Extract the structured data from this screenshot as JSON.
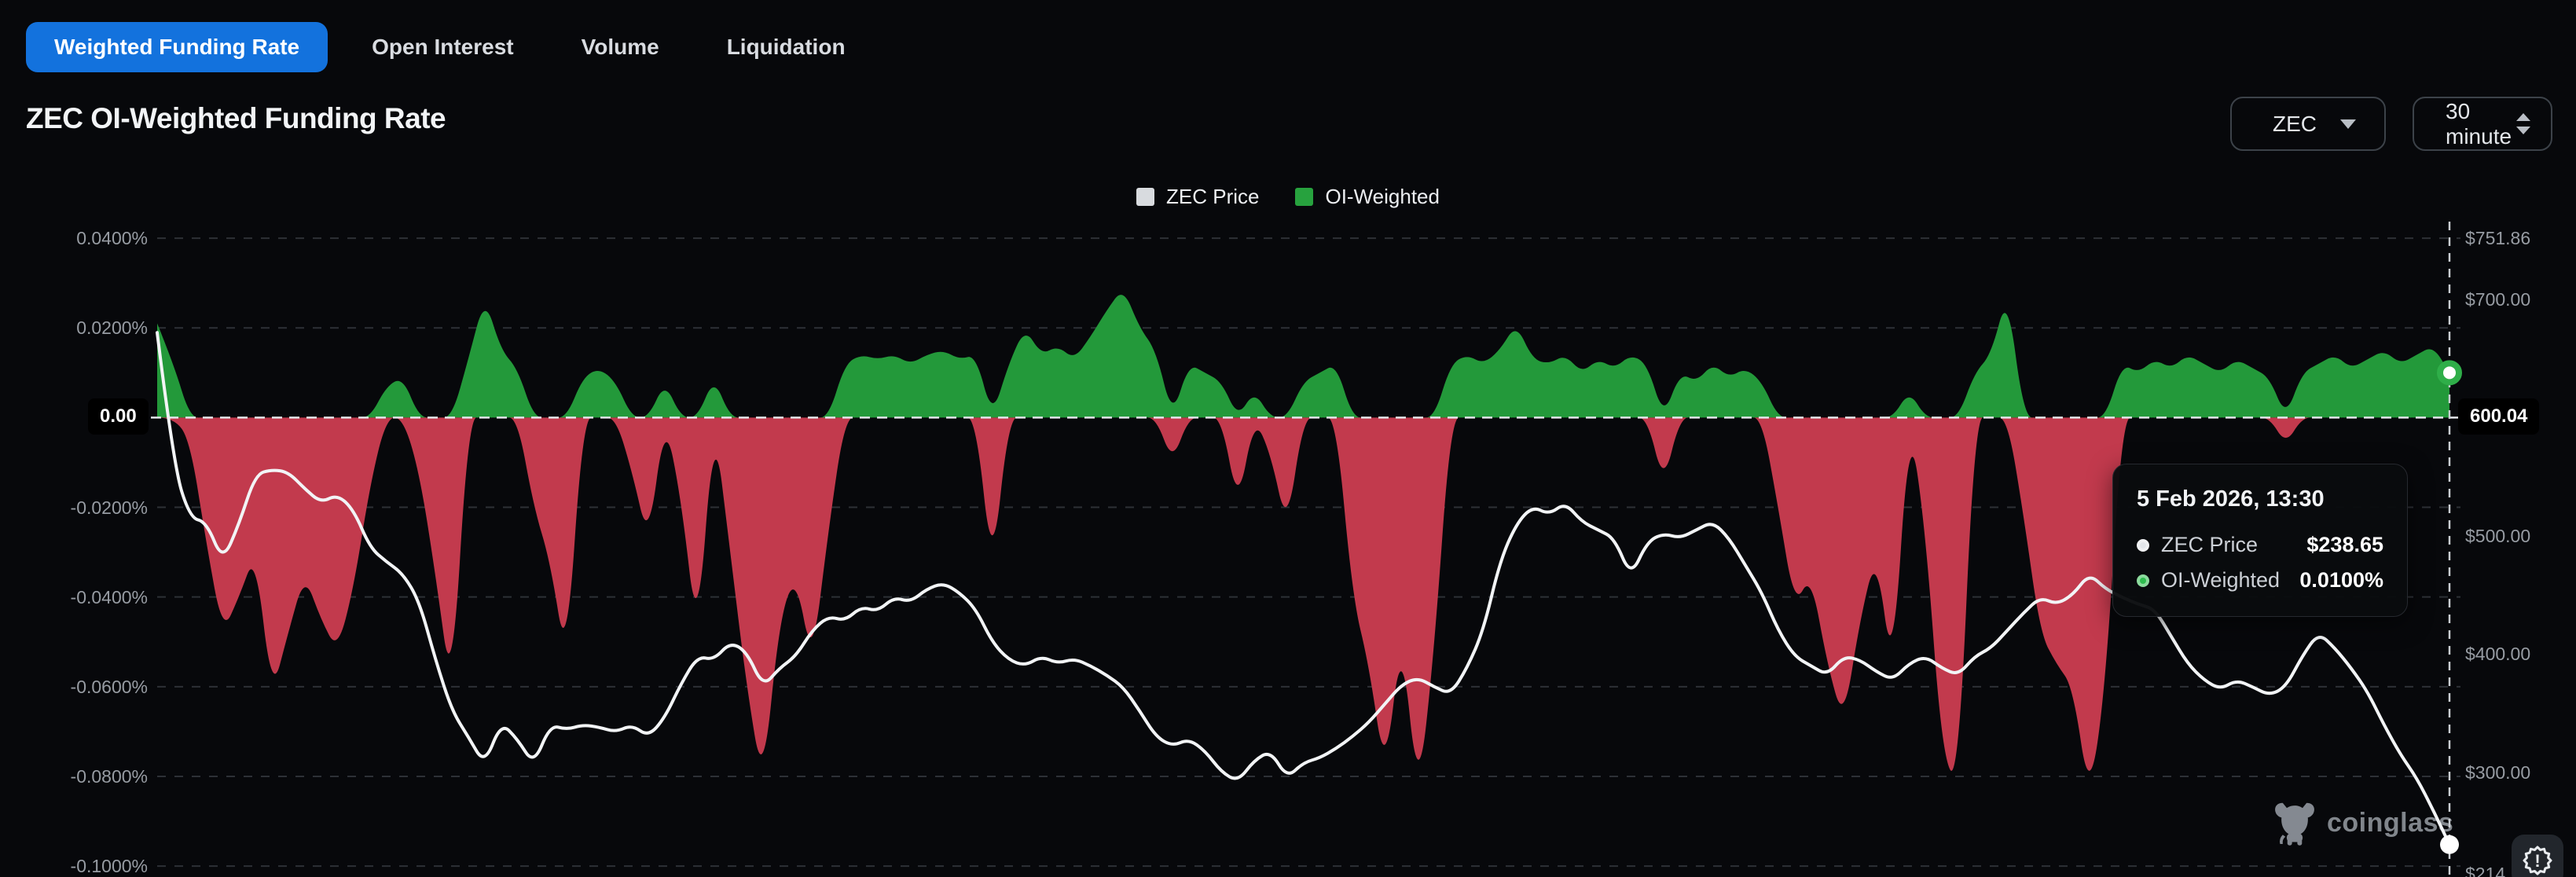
{
  "tabs": {
    "items": [
      {
        "label": "Weighted Funding Rate",
        "active": true
      },
      {
        "label": "Open Interest",
        "active": false
      },
      {
        "label": "Volume",
        "active": false
      },
      {
        "label": "Liquidation",
        "active": false
      }
    ]
  },
  "header": {
    "title": "ZEC OI-Weighted Funding Rate"
  },
  "controls": {
    "symbol": {
      "value": "ZEC"
    },
    "interval": {
      "value": "30 minute"
    }
  },
  "legend": {
    "items": [
      {
        "label": "ZEC Price",
        "color": "#d8dbdf"
      },
      {
        "label": "OI-Weighted",
        "color": "#27a23e"
      }
    ]
  },
  "tooltip": {
    "date": "5 Feb 2026, 13:30",
    "rows": [
      {
        "label": "ZEC Price",
        "value": "$238.65",
        "dot_color": "#e3e6ea"
      },
      {
        "label": "OI-Weighted",
        "value": "0.0100%",
        "dot_color": "#2ebd4e"
      }
    ]
  },
  "watermark": {
    "text": "coinglass",
    "logo": "bull-icon"
  },
  "corner_button": {
    "icon": "alert-badge-icon",
    "glyph": "!"
  },
  "colors": {
    "background": "#07080b",
    "accent_blue": "#1372dd",
    "positive_green": "#23993a",
    "negative_red": "#c23a4d",
    "price_line": "#f2f4f6",
    "grid": "#2d3036",
    "zero_line": "#e3e6ea",
    "crosshair": "#c9cdd2"
  },
  "chart_data": {
    "type": "area+line",
    "title": "ZEC OI-Weighted Funding Rate",
    "grid": "horizontal-dashed",
    "legend_position": "top-center",
    "x_axis": {
      "tick_labels_visible": false,
      "points": 141,
      "interval": "30 minute",
      "last_point_time": "5 Feb 2026, 13:30"
    },
    "left_axis": {
      "unit": "%",
      "ticks": [
        {
          "label": "0.0400%",
          "value": 0.04
        },
        {
          "label": "0.0200%",
          "value": 0.02
        },
        {
          "label": "-0.0200%",
          "value": -0.02
        },
        {
          "label": "-0.0400%",
          "value": -0.04
        },
        {
          "label": "-0.0600%",
          "value": -0.06
        },
        {
          "label": "-0.0800%",
          "value": -0.08
        },
        {
          "label": "-0.1000%",
          "value": -0.1
        }
      ],
      "zero": {
        "label": "0.00",
        "value": 0
      },
      "range": [
        -0.1,
        0.04
      ]
    },
    "right_axis": {
      "unit": "USD",
      "ticks": [
        {
          "label": "$751.86",
          "value": 751.86
        },
        {
          "label": "$700.00",
          "value": 700
        },
        {
          "label": "$500.00",
          "value": 500
        },
        {
          "label": "$400.00",
          "value": 400
        },
        {
          "label": "$300.00",
          "value": 300
        },
        {
          "label": "$214",
          "value": 214
        }
      ],
      "current": {
        "label": "600.04",
        "value": 600.04
      },
      "range": [
        210,
        751.86
      ]
    },
    "series": [
      {
        "name": "OI-Weighted",
        "type": "area",
        "unit": "%",
        "positive_color": "#23993a",
        "negative_color": "#c23a4d",
        "last_value": 0.01,
        "values": [
          0.021,
          0.012,
          -0.005,
          -0.028,
          -0.048,
          -0.04,
          -0.03,
          -0.062,
          -0.048,
          -0.035,
          -0.045,
          -0.052,
          -0.038,
          -0.015,
          0.007,
          0.009,
          -0.012,
          -0.035,
          -0.062,
          0.013,
          0.027,
          0.015,
          0.011,
          -0.02,
          -0.032,
          -0.055,
          0.009,
          0.011,
          0.008,
          -0.012,
          -0.028,
          0.008,
          -0.018,
          -0.05,
          0.009,
          -0.03,
          -0.06,
          -0.082,
          -0.045,
          -0.035,
          -0.055,
          -0.025,
          0.012,
          0.014,
          0.013,
          0.014,
          0.012,
          0.014,
          0.015,
          0.013,
          0.014,
          -0.035,
          0.012,
          0.02,
          0.014,
          0.016,
          0.013,
          0.018,
          0.024,
          0.029,
          0.02,
          0.015,
          -0.01,
          0.012,
          0.01,
          0.008,
          -0.02,
          0.006,
          -0.008,
          -0.025,
          0.008,
          0.01,
          0.012,
          -0.04,
          -0.055,
          -0.08,
          -0.048,
          -0.085,
          -0.052,
          0.012,
          0.014,
          0.012,
          0.015,
          0.021,
          0.013,
          0.012,
          0.014,
          0.01,
          0.013,
          0.011,
          0.014,
          0.012,
          -0.015,
          0.01,
          0.008,
          0.012,
          0.009,
          0.011,
          0.008,
          -0.02,
          -0.042,
          -0.035,
          -0.055,
          -0.068,
          -0.045,
          -0.03,
          -0.058,
          0.006,
          -0.025,
          -0.075,
          -0.082,
          0.01,
          0.014,
          0.028,
          -0.022,
          -0.048,
          -0.055,
          -0.06,
          -0.085,
          -0.06,
          0.012,
          0.01,
          0.013,
          0.011,
          0.014,
          0.012,
          0.01,
          0.013,
          0.011,
          0.009,
          -0.006,
          0.01,
          0.012,
          0.014,
          0.011,
          0.013,
          0.015,
          0.012,
          0.014,
          0.016,
          0.01
        ]
      },
      {
        "name": "ZEC Price",
        "type": "line",
        "unit": "USD",
        "color": "#f2f4f6",
        "last_value": 238.65,
        "values": [
          672,
          560,
          515,
          512,
          478,
          510,
          552,
          556,
          554,
          540,
          528,
          535,
          522,
          490,
          478,
          468,
          445,
          395,
          352,
          330,
          306,
          342,
          328,
          306,
          340,
          336,
          340,
          338,
          334,
          340,
          330,
          346,
          375,
          398,
          395,
          410,
          402,
          372,
          388,
          398,
          420,
          432,
          428,
          440,
          436,
          448,
          444,
          455,
          460,
          452,
          438,
          410,
          395,
          390,
          398,
          392,
          396,
          390,
          382,
          372,
          352,
          330,
          322,
          328,
          318,
          300,
          292,
          310,
          318,
          295,
          308,
          312,
          320,
          330,
          342,
          358,
          374,
          380,
          372,
          366,
          388,
          420,
          478,
          510,
          525,
          518,
          528,
          512,
          505,
          498,
          465,
          495,
          502,
          498,
          505,
          512,
          498,
          475,
          452,
          420,
          398,
          390,
          382,
          398,
          395,
          385,
          378,
          392,
          398,
          388,
          382,
          398,
          405,
          420,
          435,
          448,
          442,
          450,
          468,
          455,
          448,
          442,
          438,
          415,
          392,
          378,
          370,
          378,
          372,
          365,
          372,
          398,
          418,
          405,
          388,
          368,
          340,
          315,
          295,
          268,
          238.65
        ]
      }
    ]
  }
}
